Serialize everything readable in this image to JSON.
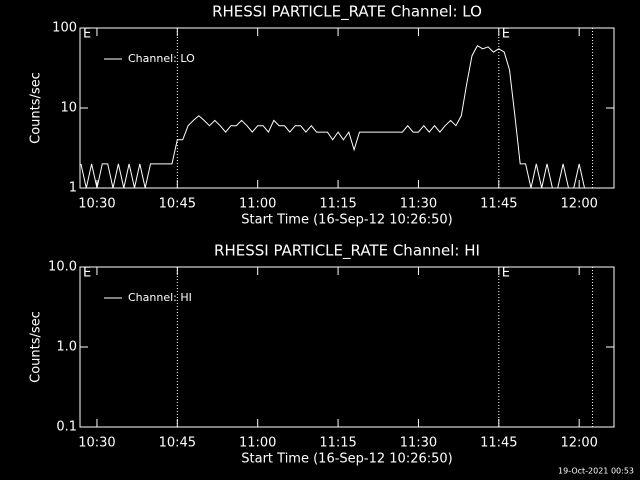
{
  "chart_data": [
    {
      "type": "line",
      "title": "RHESSI PARTICLE_RATE Channel: LO",
      "xlabel": "Start Time (16-Sep-12 10:26:50)",
      "ylabel": "Counts/sec",
      "log_y": true,
      "ylim": [
        1,
        100
      ],
      "yticks": [
        1,
        10,
        100
      ],
      "xlim": [
        "10:26:50",
        "12:06:30"
      ],
      "xticks": [
        "10:30",
        "10:45",
        "11:00",
        "11:15",
        "11:30",
        "11:45",
        "12:00"
      ],
      "vlines": [
        "10:45",
        "11:45",
        "12:02:30"
      ],
      "annotations": [
        {
          "text": "E",
          "x": "10:26:50"
        },
        {
          "text": "E",
          "x": "11:45"
        }
      ],
      "legend": "upper left",
      "x": [
        "10:27",
        "10:28",
        "10:29",
        "10:30",
        "10:31",
        "10:32",
        "10:33",
        "10:34",
        "10:35",
        "10:36",
        "10:37",
        "10:38",
        "10:39",
        "10:40",
        "10:41",
        "10:42",
        "10:43",
        "10:44",
        "10:45",
        "10:46",
        "10:47",
        "10:48",
        "10:49",
        "10:50",
        "10:51",
        "10:52",
        "10:53",
        "10:54",
        "10:55",
        "10:56",
        "10:57",
        "10:58",
        "10:59",
        "11:00",
        "11:01",
        "11:02",
        "11:03",
        "11:04",
        "11:05",
        "11:06",
        "11:07",
        "11:08",
        "11:09",
        "11:10",
        "11:11",
        "11:12",
        "11:13",
        "11:14",
        "11:15",
        "11:16",
        "11:17",
        "11:18",
        "11:19",
        "11:20",
        "11:21",
        "11:22",
        "11:23",
        "11:24",
        "11:25",
        "11:26",
        "11:27",
        "11:28",
        "11:29",
        "11:30",
        "11:31",
        "11:32",
        "11:33",
        "11:34",
        "11:35",
        "11:36",
        "11:37",
        "11:38",
        "11:39",
        "11:40",
        "11:41",
        "11:42",
        "11:43",
        "11:44",
        "11:45",
        "11:46",
        "11:47",
        "11:48",
        "11:49",
        "11:50",
        "11:51",
        "11:52",
        "11:53",
        "11:54",
        "11:55",
        "11:56",
        "11:57",
        "11:58",
        "11:59",
        "12:00",
        "12:01",
        "12:02"
      ],
      "series": [
        {
          "name": "Channel: LO",
          "color": "#ffffff",
          "values": [
            2,
            1,
            2,
            1,
            2,
            2,
            1,
            2,
            1,
            2,
            1,
            2,
            1,
            2,
            2,
            2,
            2,
            2,
            4,
            4,
            6,
            7,
            8,
            7,
            6,
            7,
            6,
            5,
            6,
            6,
            7,
            6,
            5,
            6,
            6,
            5,
            7,
            6,
            6,
            5,
            6,
            6,
            5,
            6,
            5,
            5,
            5,
            4,
            5,
            4,
            5,
            3,
            5,
            5,
            5,
            5,
            5,
            5,
            5,
            5,
            5,
            6,
            5,
            5,
            6,
            5,
            6,
            5,
            6,
            7,
            6,
            8,
            20,
            45,
            60,
            55,
            58,
            50,
            55,
            50,
            30,
            8,
            2,
            2,
            1,
            2,
            1,
            2,
            1,
            1,
            2,
            1,
            1,
            2,
            1,
            1
          ]
        }
      ]
    },
    {
      "type": "line",
      "title": "RHESSI PARTICLE_RATE Channel: HI",
      "xlabel": "Start Time (16-Sep-12 10:26:50)",
      "ylabel": "Counts/sec",
      "log_y": true,
      "ylim": [
        0.1,
        10
      ],
      "yticks": [
        0.1,
        {
          "value": 1,
          "label": "1.0"
        },
        {
          "value": 10,
          "label": "10.0"
        }
      ],
      "xlim": [
        "10:26:50",
        "12:06:30"
      ],
      "xticks": [
        "10:30",
        "10:45",
        "11:00",
        "11:15",
        "11:30",
        "11:45",
        "12:00"
      ],
      "vlines": [
        "10:45",
        "11:45",
        "12:02:30"
      ],
      "annotations": [
        {
          "text": "E",
          "x": "10:26:50"
        },
        {
          "text": "E",
          "x": "11:45"
        }
      ],
      "legend": "upper left",
      "x": [],
      "series": [
        {
          "name": "Channel: HI",
          "color": "#ffffff",
          "values": []
        }
      ]
    }
  ],
  "footer": "19-Oct-2021 00:53"
}
